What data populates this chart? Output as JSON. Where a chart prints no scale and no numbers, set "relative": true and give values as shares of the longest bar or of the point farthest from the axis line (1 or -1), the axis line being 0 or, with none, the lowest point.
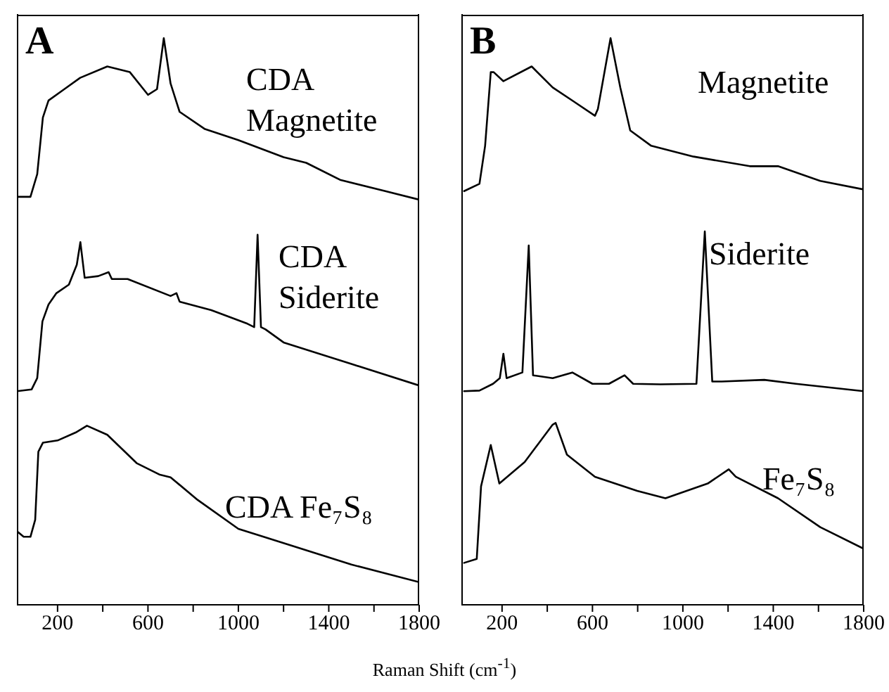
{
  "chart_data": [
    {
      "type": "line",
      "title": "A",
      "xlabel": "Raman Shift (cm$^{-1}$)",
      "relative": true,
      "xlim": [
        20,
        1800
      ],
      "xticks": [
        200,
        {
          "value": 400,
          "label": null
        },
        600,
        {
          "value": 800,
          "label": null
        },
        1000,
        {
          "value": 1200,
          "label": null
        },
        1400,
        {
          "value": 1600,
          "label": null
        },
        1800
      ],
      "marker": "none",
      "line_style": "solid",
      "series": [
        {
          "name": "CDA Magnetite",
          "color": "#000000",
          "x": [
            20,
            80,
            110,
            135,
            160,
            230,
            300,
            420,
            520,
            600,
            640,
            670,
            700,
            740,
            850,
            1000,
            1200,
            1300,
            1450,
            1650,
            1800
          ],
          "values": [
            0.72,
            0.72,
            0.76,
            0.86,
            0.89,
            0.91,
            0.93,
            0.95,
            0.94,
            0.9,
            0.91,
            1,
            0.92,
            0.87,
            0.84,
            0.82,
            0.79,
            0.78,
            0.75,
            0.73,
            0.715
          ]
        },
        {
          "name": "CDA Siderite",
          "color": "#000000",
          "x": [
            20,
            85,
            110,
            133,
            160,
            195,
            250,
            285,
            301,
            320,
            380,
            426,
            440,
            510,
            700,
            726,
            740,
            880,
            1040,
            1070,
            1085,
            1100,
            1120,
            1200,
            1500,
            1800
          ],
          "values": [
            0.377,
            0.38,
            0.4,
            0.5,
            0.53,
            0.55,
            0.565,
            0.6,
            0.64,
            0.577,
            0.58,
            0.587,
            0.575,
            0.575,
            0.545,
            0.55,
            0.535,
            0.52,
            0.496,
            0.49,
            0.653,
            0.49,
            0.486,
            0.463,
            0.425,
            0.387
          ]
        },
        {
          "name": "CDA Fe₇S₈",
          "color": "#000000",
          "x": [
            20,
            50,
            80,
            101,
            115,
            135,
            200,
            280,
            330,
            420,
            550,
            650,
            700,
            820,
            1000,
            1200,
            1500,
            1800
          ],
          "values": [
            0.13,
            0.12,
            0.12,
            0.15,
            0.27,
            0.286,
            0.29,
            0.304,
            0.316,
            0.3,
            0.25,
            0.23,
            0.225,
            0.185,
            0.134,
            0.109,
            0.071,
            0.04
          ]
        }
      ]
    },
    {
      "type": "line",
      "title": "B",
      "relative": true,
      "xlim": [
        20,
        1800
      ],
      "xticks": [
        200,
        {
          "value": 400,
          "label": null
        },
        600,
        {
          "value": 800,
          "label": null
        },
        1000,
        {
          "value": 1200,
          "label": null
        },
        1400,
        {
          "value": 1600,
          "label": null
        },
        1800
      ],
      "marker": "none",
      "line_style": "solid",
      "series": [
        {
          "name": "Magnetite",
          "color": "#000000",
          "x": [
            32,
            100,
            125,
            150,
            163,
            206,
            331,
            424,
            518,
            611,
            624,
            680,
            723,
            767,
            860,
            1047,
            1296,
            1421,
            1608,
            1800
          ],
          "values": [
            0.73,
            0.743,
            0.81,
            0.94,
            0.94,
            0.924,
            0.95,
            0.913,
            0.888,
            0.863,
            0.875,
            1,
            0.913,
            0.837,
            0.81,
            0.791,
            0.774,
            0.774,
            0.748,
            0.733
          ]
        },
        {
          "name": "Siderite",
          "color": "#000000",
          "x": [
            32,
            100,
            160,
            190,
            206,
            220,
            290,
            318,
            337,
            424,
            511,
            600,
            673,
            742,
            780,
            900,
            1060,
            1097,
            1130,
            1172,
            1360,
            1500,
            1800
          ],
          "values": [
            0.377,
            0.378,
            0.39,
            0.4,
            0.443,
            0.4,
            0.41,
            0.634,
            0.405,
            0.4,
            0.41,
            0.39,
            0.39,
            0.405,
            0.39,
            0.389,
            0.39,
            0.659,
            0.394,
            0.394,
            0.397,
            0.39,
            0.377
          ]
        },
        {
          "name": "Fe₇S₈",
          "color": "#000000",
          "x": [
            32,
            88,
            107,
            150,
            188,
            300,
            424,
            437,
            487,
            611,
            798,
            923,
            1110,
            1203,
            1234,
            1421,
            1608,
            1800
          ],
          "values": [
            0.074,
            0.081,
            0.209,
            0.282,
            0.214,
            0.252,
            0.318,
            0.321,
            0.265,
            0.226,
            0.201,
            0.188,
            0.214,
            0.239,
            0.226,
            0.188,
            0.137,
            0.099
          ]
        }
      ]
    }
  ]
}
